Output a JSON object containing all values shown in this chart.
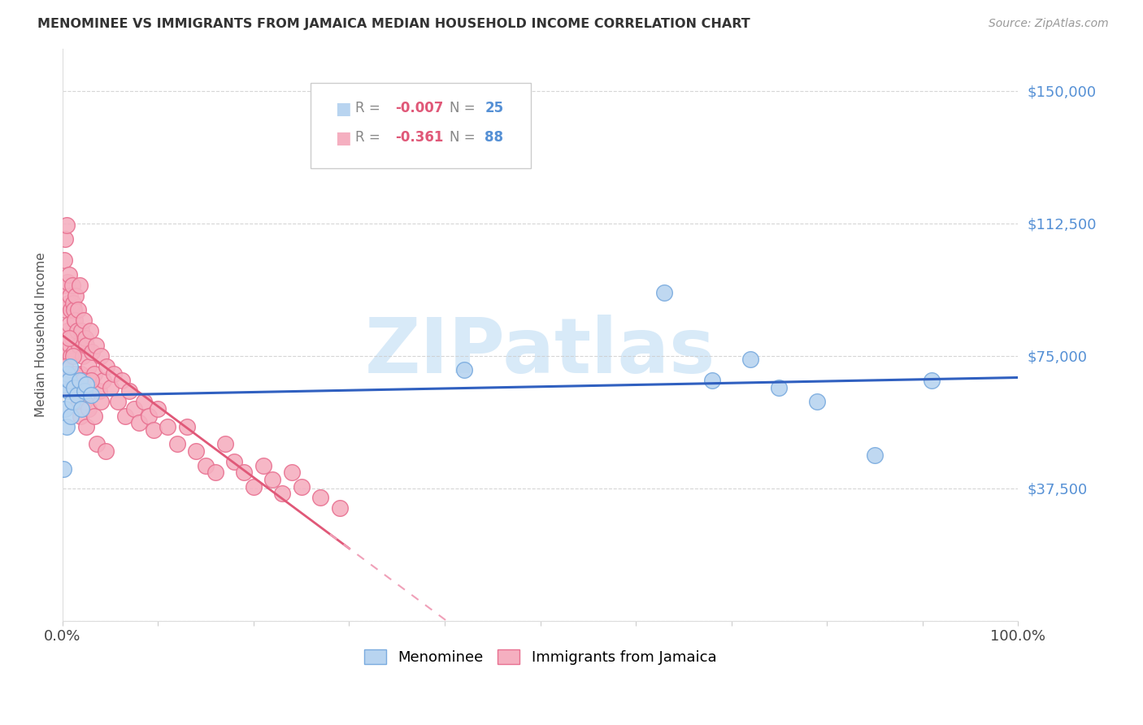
{
  "title": "MENOMINEE VS IMMIGRANTS FROM JAMAICA MEDIAN HOUSEHOLD INCOME CORRELATION CHART",
  "source": "Source: ZipAtlas.com",
  "ylabel": "Median Household Income",
  "yticks": [
    0,
    37500,
    75000,
    112500,
    150000
  ],
  "ytick_labels": [
    "",
    "$37,500",
    "$75,000",
    "$112,500",
    "$150,000"
  ],
  "ylim": [
    0,
    162000
  ],
  "xlim": [
    0.0,
    1.0
  ],
  "series1_name": "Menominee",
  "series1_color": "#b8d4f0",
  "series1_edge_color": "#7aabdf",
  "series2_name": "Immigrants from Jamaica",
  "series2_color": "#f5afc0",
  "series2_edge_color": "#e87090",
  "trend1_color": "#3060c0",
  "trend2_solid_color": "#e05878",
  "trend2_dash_color": "#f0a0b8",
  "watermark": "ZIPatlas",
  "watermark_color": "#d8eaf8",
  "legend_R1_label": "R = ",
  "legend_R1_val": "-0.007",
  "legend_N1_val": "N = 25",
  "legend_R2_label": "R =  ",
  "legend_R2_val": "-0.361",
  "legend_N2_val": "N = 88",
  "menominee_x": [
    0.001,
    0.002,
    0.003,
    0.004,
    0.005,
    0.006,
    0.007,
    0.008,
    0.009,
    0.01,
    0.012,
    0.015,
    0.018,
    0.02,
    0.023,
    0.025,
    0.03,
    0.42,
    0.63,
    0.68,
    0.72,
    0.75,
    0.79,
    0.85,
    0.91
  ],
  "menominee_y": [
    43000,
    67000,
    60000,
    55000,
    70000,
    65000,
    68000,
    72000,
    58000,
    62000,
    66000,
    64000,
    68000,
    60000,
    65000,
    67000,
    64000,
    71000,
    93000,
    68000,
    74000,
    66000,
    62000,
    47000,
    68000
  ],
  "jamaica_x": [
    0.001,
    0.002,
    0.003,
    0.003,
    0.004,
    0.005,
    0.005,
    0.006,
    0.006,
    0.007,
    0.007,
    0.008,
    0.008,
    0.009,
    0.009,
    0.01,
    0.01,
    0.011,
    0.012,
    0.012,
    0.013,
    0.014,
    0.015,
    0.016,
    0.017,
    0.018,
    0.019,
    0.02,
    0.021,
    0.022,
    0.024,
    0.025,
    0.027,
    0.029,
    0.031,
    0.033,
    0.035,
    0.038,
    0.04,
    0.043,
    0.046,
    0.05,
    0.054,
    0.058,
    0.062,
    0.066,
    0.07,
    0.075,
    0.08,
    0.085,
    0.09,
    0.095,
    0.1,
    0.11,
    0.12,
    0.13,
    0.14,
    0.15,
    0.16,
    0.17,
    0.18,
    0.19,
    0.2,
    0.21,
    0.22,
    0.23,
    0.24,
    0.25,
    0.27,
    0.29,
    0.003,
    0.005,
    0.007,
    0.009,
    0.011,
    0.013,
    0.015,
    0.017,
    0.019,
    0.021,
    0.023,
    0.025,
    0.027,
    0.03,
    0.033,
    0.036,
    0.04,
    0.045
  ],
  "jamaica_y": [
    95000,
    102000,
    108000,
    88000,
    112000,
    96000,
    82000,
    90000,
    76000,
    98000,
    84000,
    92000,
    78000,
    88000,
    75000,
    95000,
    80000,
    90000,
    88000,
    76000,
    85000,
    92000,
    82000,
    88000,
    78000,
    95000,
    70000,
    82000,
    75000,
    85000,
    80000,
    78000,
    72000,
    82000,
    76000,
    70000,
    78000,
    65000,
    75000,
    68000,
    72000,
    66000,
    70000,
    62000,
    68000,
    58000,
    65000,
    60000,
    56000,
    62000,
    58000,
    54000,
    60000,
    55000,
    50000,
    55000,
    48000,
    44000,
    42000,
    50000,
    45000,
    42000,
    38000,
    44000,
    40000,
    36000,
    42000,
    38000,
    35000,
    32000,
    72000,
    68000,
    80000,
    65000,
    75000,
    70000,
    65000,
    62000,
    58000,
    68000,
    62000,
    55000,
    60000,
    68000,
    58000,
    50000,
    62000,
    48000
  ]
}
